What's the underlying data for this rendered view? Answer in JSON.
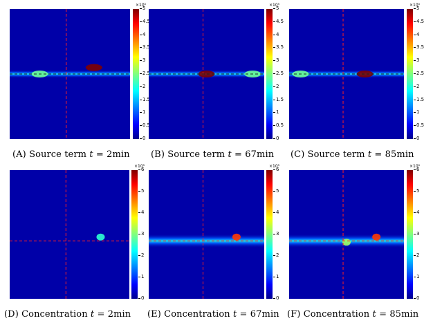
{
  "chart_data": [
    {
      "type": "heatmap",
      "panel": "a",
      "caption_tag": "(A)",
      "caption_text": "Source term",
      "t_var": "t",
      "t_value": "2",
      "t_unit": "min",
      "colorbar": {
        "min": 0,
        "max": 5,
        "exponent": "×10⁵",
        "ticks": [
          "0",
          "0.5",
          "1",
          "1.5",
          "2",
          "2.5",
          "3",
          "3.5",
          "4",
          "4.5",
          "5"
        ]
      },
      "dashed_lines": {
        "vertical_x": 0.47,
        "horizontal_y": 0.5
      },
      "hotspots": [
        {
          "x": 0.7,
          "y": 0.45,
          "value": 5.0
        },
        {
          "x": 0.25,
          "y": 0.5,
          "value": 2.4
        }
      ]
    },
    {
      "type": "heatmap",
      "panel": "b",
      "caption_tag": "(B)",
      "caption_text": "Source term",
      "t_var": "t",
      "t_value": "67",
      "t_unit": "min",
      "colorbar": {
        "min": 0,
        "max": 5,
        "exponent": "×10⁵",
        "ticks": [
          "0",
          "0.5",
          "1",
          "1.5",
          "2",
          "2.5",
          "3",
          "3.5",
          "4",
          "4.5",
          "5"
        ]
      },
      "dashed_lines": {
        "vertical_x": 0.47,
        "horizontal_y": 0.5
      },
      "hotspots": [
        {
          "x": 0.5,
          "y": 0.5,
          "value": 5.0
        },
        {
          "x": 0.9,
          "y": 0.5,
          "value": 2.4
        }
      ]
    },
    {
      "type": "heatmap",
      "panel": "c",
      "caption_tag": "(C)",
      "caption_text": "Source term",
      "t_var": "t",
      "t_value": "85",
      "t_unit": "min",
      "colorbar": {
        "min": 0,
        "max": 5,
        "exponent": "×10⁵",
        "ticks": [
          "0",
          "0.5",
          "1",
          "1.5",
          "2",
          "2.5",
          "3",
          "3.5",
          "4",
          "4.5",
          "5"
        ]
      },
      "dashed_lines": {
        "vertical_x": 0.47,
        "horizontal_y": 0.5
      },
      "hotspots": [
        {
          "x": 0.66,
          "y": 0.5,
          "value": 5.0
        },
        {
          "x": 0.1,
          "y": 0.5,
          "value": 2.4
        }
      ]
    },
    {
      "type": "heatmap",
      "panel": "d",
      "caption_tag": "(D)",
      "caption_text": "Concentration",
      "t_var": "t",
      "t_value": "2",
      "t_unit": "min",
      "colorbar": {
        "min": 0,
        "max": 6,
        "exponent": "×10⁵",
        "ticks": [
          "0",
          "1",
          "2",
          "3",
          "4",
          "5",
          "6"
        ]
      },
      "dashed_lines": {
        "vertical_x": 0.47,
        "horizontal_y": 0.55
      },
      "hotspots": [
        {
          "x": 0.76,
          "y": 0.52,
          "value": 2.5
        }
      ]
    },
    {
      "type": "heatmap",
      "panel": "e",
      "caption_tag": "(E)",
      "caption_text": "Concentration",
      "t_var": "t",
      "t_value": "67",
      "t_unit": "min",
      "colorbar": {
        "min": 0,
        "max": 6,
        "exponent": "×10⁵",
        "ticks": [
          "0",
          "1",
          "2",
          "3",
          "4",
          "5",
          "6"
        ]
      },
      "dashed_lines": {
        "vertical_x": 0.47,
        "horizontal_y": 0.55
      },
      "hotspots": [
        {
          "x": 0.76,
          "y": 0.52,
          "value": 5.0
        }
      ]
    },
    {
      "type": "heatmap",
      "panel": "f",
      "caption_tag": "(F)",
      "caption_text": "Concentration",
      "t_var": "t",
      "t_value": "85",
      "t_unit": "min",
      "colorbar": {
        "min": 0,
        "max": 6,
        "exponent": "×10⁵",
        "ticks": [
          "0",
          "1",
          "2",
          "3",
          "4",
          "5",
          "6"
        ]
      },
      "dashed_lines": {
        "vertical_x": 0.47,
        "horizontal_y": 0.55
      },
      "hotspots": [
        {
          "x": 0.76,
          "y": 0.52,
          "value": 5.0
        },
        {
          "x": 0.5,
          "y": 0.56,
          "value": 3.2
        }
      ]
    }
  ]
}
